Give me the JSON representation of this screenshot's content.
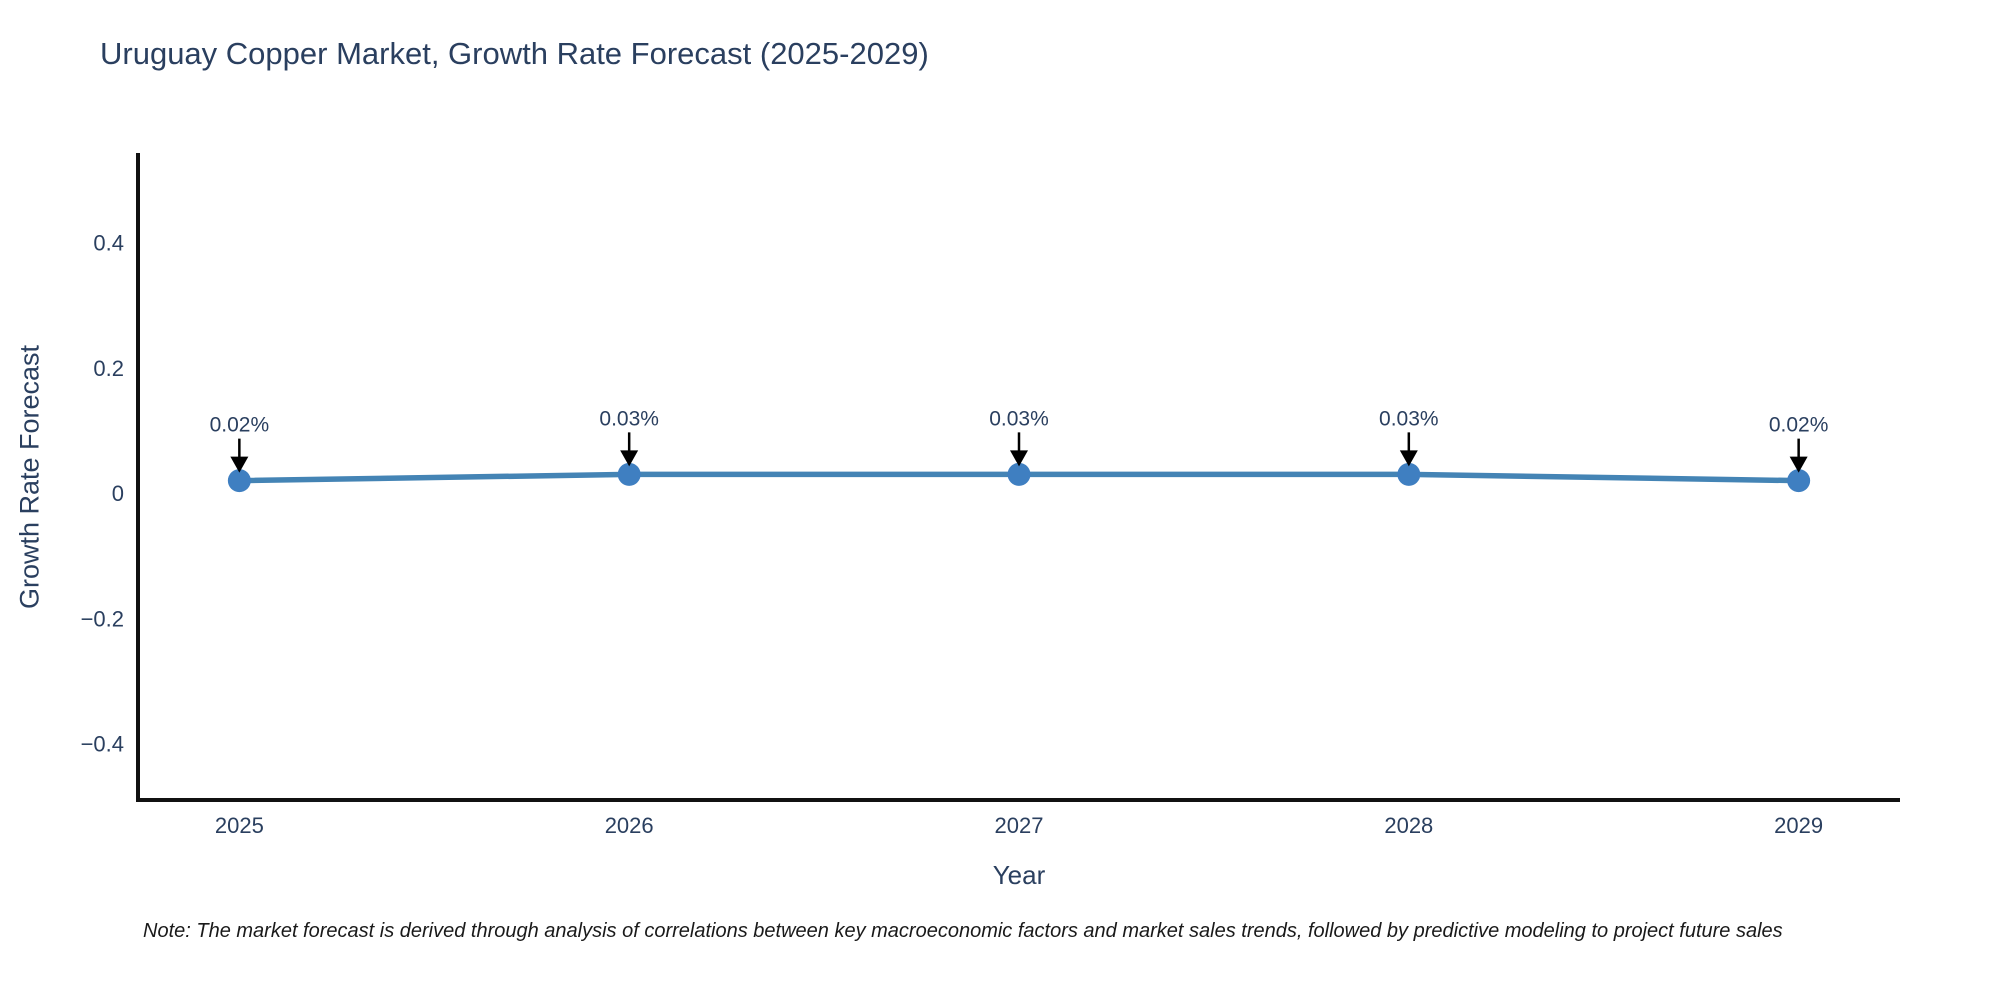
{
  "chart_data": {
    "type": "line",
    "title": "Uruguay Copper Market, Growth Rate Forecast (2025-2029)",
    "xlabel": "Year",
    "ylabel": "Growth Rate Forecast",
    "x": [
      2025,
      2026,
      2027,
      2028,
      2029
    ],
    "x_tick_labels": [
      "2025",
      "2026",
      "2027",
      "2028",
      "2029"
    ],
    "series": [
      {
        "name": "Growth Rate Forecast",
        "values": [
          0.02,
          0.03,
          0.03,
          0.03,
          0.02
        ],
        "point_labels": [
          "0.02%",
          "0.03%",
          "0.03%",
          "0.03%",
          "0.02%"
        ]
      }
    ],
    "y_ticks": [
      0.4,
      0.2,
      0,
      -0.2,
      -0.4
    ],
    "y_tick_labels": [
      "0.4",
      "0.2",
      "0",
      "−0.2",
      "−0.4"
    ],
    "ylim": [
      -0.49,
      0.54
    ],
    "xlim": [
      2024.74,
      2029.26
    ],
    "grid": false,
    "legend": "none",
    "annotation_arrow_direction": "down",
    "colors": {
      "line": "#4484b5",
      "marker": "#3f7fc1",
      "axis": "#111111",
      "text": "#2a3f5f",
      "annotation_text": "#2a3f5f",
      "arrow": "#000000",
      "note_text": "#1a1a1a",
      "background": "#ffffff"
    }
  },
  "note": "Note: The market forecast is derived through analysis of correlations between key macroeconomic factors and market sales trends, followed by predictive modeling to project future sales"
}
